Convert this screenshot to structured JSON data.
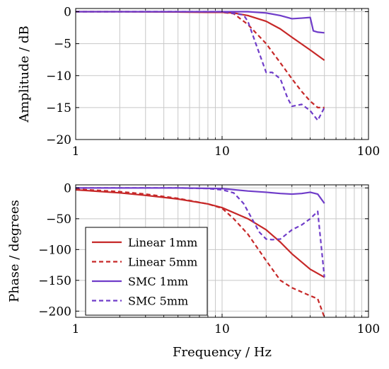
{
  "chart_data": [
    {
      "type": "line",
      "x_scale": "log",
      "xlim": [
        1,
        100
      ],
      "ylim": [
        -20,
        0.5
      ],
      "xticks": [
        1,
        10,
        100
      ],
      "xtick_labels": [
        "1",
        "10",
        "100"
      ],
      "yticks": [
        0,
        -5,
        -10,
        -15,
        -20
      ],
      "ytick_labels": [
        "0",
        "−5",
        "−10",
        "−15",
        "−20"
      ],
      "xlabel": "",
      "ylabel": "Amplitude / dB",
      "grid": true,
      "series": [
        {
          "name": "Linear 1mm",
          "color": "#c62828",
          "dash": "solid",
          "x": [
            1,
            2,
            5,
            8,
            10,
            12,
            15,
            20,
            25,
            30,
            40,
            50
          ],
          "y": [
            0,
            0,
            -0.05,
            -0.1,
            -0.1,
            -0.2,
            -0.6,
            -1.5,
            -2.7,
            -4,
            -6,
            -7.6
          ]
        },
        {
          "name": "Linear 5mm",
          "color": "#c62828",
          "dash": "dashed",
          "x": [
            1,
            5,
            10,
            12,
            15,
            20,
            25,
            30,
            35,
            40,
            45,
            50
          ],
          "y": [
            0,
            0,
            -0.1,
            -0.3,
            -2,
            -5,
            -8,
            -10.5,
            -12.5,
            -14,
            -15,
            -15
          ]
        },
        {
          "name": "SMC 1mm",
          "color": "#6f3cc9",
          "dash": "solid",
          "x": [
            1,
            5,
            10,
            15,
            20,
            25,
            30,
            35,
            40,
            42,
            45,
            50
          ],
          "y": [
            0,
            0,
            0,
            0,
            -0.2,
            -0.6,
            -1.1,
            -1.0,
            -0.9,
            -3,
            -3.2,
            -3.3
          ]
        },
        {
          "name": "SMC 5mm",
          "color": "#6f3cc9",
          "dash": "dashed",
          "x": [
            1,
            5,
            10,
            14,
            15,
            17,
            20,
            22,
            25,
            28,
            30,
            35,
            40,
            45,
            50
          ],
          "y": [
            0,
            0,
            0,
            -0.5,
            -1.5,
            -5,
            -9.5,
            -9.5,
            -10.5,
            -13.5,
            -14.8,
            -14.5,
            -15.5,
            -17,
            -15
          ]
        }
      ]
    },
    {
      "type": "line",
      "x_scale": "log",
      "xlim": [
        1,
        100
      ],
      "ylim": [
        -210,
        5
      ],
      "xticks": [
        1,
        10,
        100
      ],
      "xtick_labels": [
        "1",
        "10",
        "100"
      ],
      "yticks": [
        0,
        -50,
        -100,
        -150,
        -200
      ],
      "ytick_labels": [
        "0",
        "−50",
        "−100",
        "−150",
        "−200"
      ],
      "xlabel": "Frequency / Hz",
      "ylabel": "Phase / degrees",
      "grid": true,
      "legend": "bottom-left",
      "series": [
        {
          "name": "Linear 1mm",
          "color": "#c62828",
          "dash": "solid",
          "x": [
            1,
            2,
            3,
            5,
            8,
            10,
            15,
            20,
            25,
            30,
            40,
            50
          ],
          "y": [
            -3,
            -8,
            -12,
            -18,
            -26,
            -32,
            -50,
            -68,
            -88,
            -107,
            -132,
            -145
          ]
        },
        {
          "name": "Linear 5mm",
          "color": "#c62828",
          "dash": "dashed",
          "x": [
            1,
            2,
            3,
            5,
            8,
            10,
            12,
            15,
            20,
            25,
            30,
            40,
            45,
            50
          ],
          "y": [
            -2,
            -6,
            -10,
            -17,
            -26,
            -33,
            -50,
            -75,
            -118,
            -150,
            -162,
            -175,
            -180,
            -210
          ]
        },
        {
          "name": "SMC 1mm",
          "color": "#6f3cc9",
          "dash": "solid",
          "x": [
            1,
            5,
            10,
            15,
            20,
            25,
            30,
            35,
            40,
            45,
            50
          ],
          "y": [
            0,
            0,
            -1,
            -5,
            -7,
            -9,
            -10,
            -9,
            -7,
            -10,
            -25
          ]
        },
        {
          "name": "SMC 5mm",
          "color": "#6f3cc9",
          "dash": "dashed",
          "x": [
            1,
            5,
            8,
            10,
            12,
            14,
            16,
            18,
            20,
            22,
            25,
            30,
            35,
            40,
            45,
            50
          ],
          "y": [
            0,
            0,
            -1,
            -3,
            -8,
            -25,
            -50,
            -72,
            -83,
            -84,
            -83,
            -68,
            -60,
            -50,
            -38,
            -145
          ]
        }
      ]
    }
  ]
}
